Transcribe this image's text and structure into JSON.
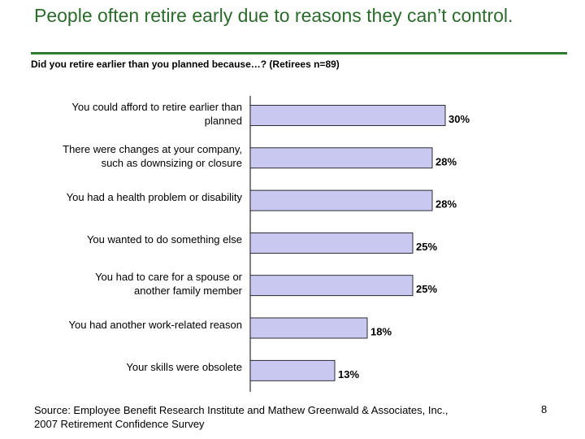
{
  "slide": {
    "title": "People often retire early due to reasons they can’t control.",
    "source_line1": "Source: Employee Benefit Research Institute and Mathew Greenwald & Associates, Inc.,",
    "source_line2": "2007 Retirement Confidence Survey",
    "page_number": "8"
  },
  "chart_data": {
    "type": "bar",
    "orientation": "horizontal",
    "title": "Did you retire earlier than you planned because…? (Retirees n=89)",
    "categories": [
      [
        "You could afford to retire earlier than",
        "planned"
      ],
      [
        "There were changes at your company,",
        "such as downsizing or closure"
      ],
      [
        "You had a health problem or disability"
      ],
      [
        "You wanted to do something else"
      ],
      [
        "You had to care for a spouse or",
        "another family member"
      ],
      [
        "You had another work-related reason"
      ],
      [
        "Your skills were obsolete"
      ]
    ],
    "values": [
      30,
      28,
      28,
      25,
      25,
      18,
      13
    ],
    "value_labels": [
      "30%",
      "28%",
      "28%",
      "25%",
      "25%",
      "18%",
      "13%"
    ],
    "xlim": [
      0,
      30
    ],
    "bar_color": "#c8c8f0",
    "xlabel": "",
    "ylabel": ""
  }
}
